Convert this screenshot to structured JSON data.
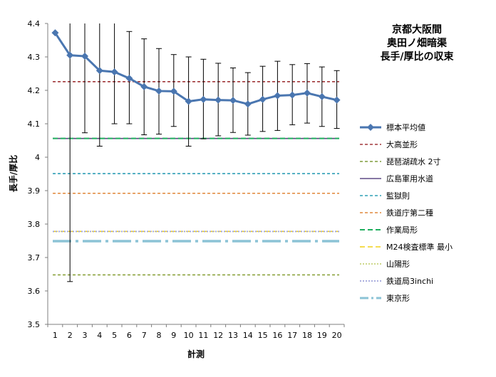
{
  "chart_data": {
    "type": "line",
    "title": [
      "京都大阪間",
      "奥田ノ畑暗渠",
      "長手/厚比の収束"
    ],
    "xlabel": "計測",
    "ylabel": "長手/厚比",
    "ylim": [
      3.5,
      4.4
    ],
    "yticks": [
      "3.5",
      "3.6",
      "3.7",
      "3.8",
      "3.9",
      "4",
      "4.1",
      "4.2",
      "4.3",
      "4.4"
    ],
    "x": [
      1,
      2,
      3,
      4,
      5,
      6,
      7,
      8,
      9,
      10,
      11,
      12,
      13,
      14,
      15,
      16,
      17,
      18,
      19,
      20
    ],
    "xticks": [
      "1",
      "2",
      "3",
      "4",
      "5",
      "6",
      "7",
      "8",
      "9",
      "10",
      "11",
      "12",
      "13",
      "14",
      "15",
      "16",
      "17",
      "18",
      "19",
      "20"
    ],
    "series": [
      {
        "name": "標本平均値",
        "color": "#4A76B0",
        "values": [
          4.372,
          4.305,
          4.302,
          4.259,
          4.255,
          4.236,
          4.211,
          4.198,
          4.197,
          4.167,
          4.173,
          4.171,
          4.17,
          4.159,
          4.173,
          4.184,
          4.186,
          4.192,
          4.181,
          4.171
        ],
        "err_low": [
          null,
          3.628,
          4.073,
          4.033,
          4.1,
          4.1,
          4.067,
          4.069,
          4.092,
          4.033,
          4.055,
          4.064,
          4.074,
          4.066,
          4.077,
          4.08,
          4.097,
          4.102,
          4.092,
          4.086
        ],
        "err_high": [
          null,
          4.4,
          4.4,
          4.4,
          4.4,
          4.376,
          4.354,
          4.325,
          4.307,
          4.3,
          4.293,
          4.281,
          4.267,
          4.253,
          4.272,
          4.287,
          4.277,
          4.28,
          4.27,
          4.259
        ]
      }
    ],
    "reference_lines": [
      {
        "name": "大高並形",
        "value": 4.226,
        "color": "#A0373A",
        "dash": "4,3",
        "width": 1.6
      },
      {
        "name": "琵琶湖疏水 2寸",
        "value": 4.056,
        "color": "#7E9B3A",
        "dash": "4,3",
        "width": 1.6
      },
      {
        "name": "広島軍用水道",
        "value": 4.056,
        "color": "#5E4A86",
        "dash": "",
        "width": 1.6
      },
      {
        "name": "監獄則",
        "value": 3.951,
        "color": "#2E9FB5",
        "dash": "4,3",
        "width": 1.6
      },
      {
        "name": "鉄道庁第二種",
        "value": 3.892,
        "color": "#E0873A",
        "dash": "4,3",
        "width": 1.6
      },
      {
        "name": "作業局形",
        "value": 4.056,
        "color": "#1FAE5E",
        "dash": "7,4",
        "width": 2
      },
      {
        "name": "M24検査標準 最小",
        "value": 3.778,
        "color": "#F2D21A",
        "dash": "7,4",
        "width": 1.6
      },
      {
        "name": "山陽形",
        "value": 3.778,
        "color": "#C7D27B",
        "dash": "2,2",
        "width": 1.8
      },
      {
        "name": "鉄道局3inchi",
        "value": 3.778,
        "color": "#9FA3DA",
        "dash": "2,2",
        "width": 1.8
      },
      {
        "name": "東京形",
        "value": 3.749,
        "color": "#8CC3D6",
        "dash": "26,6,4,6",
        "width": 3.5
      },
      {
        "name": "",
        "value": 3.648,
        "color": "#8BA33F",
        "dash": "4,3",
        "width": 1.6
      }
    ],
    "legend_position": "right",
    "grid": false
  }
}
